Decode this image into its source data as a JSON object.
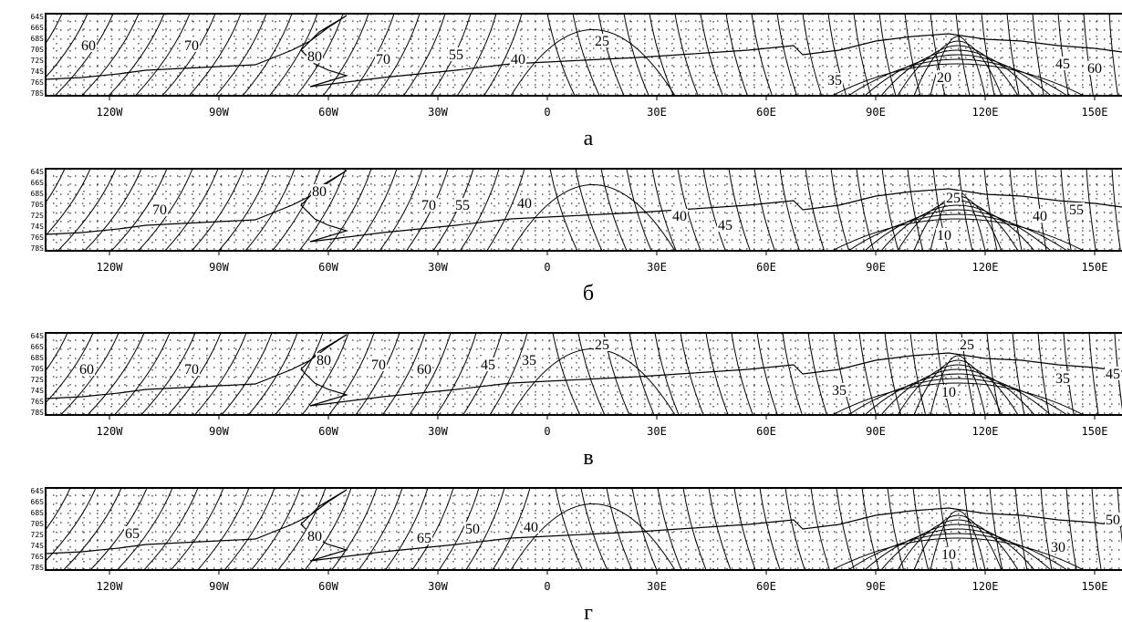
{
  "panels": [
    {
      "label": "а",
      "xticks": [
        "120W",
        "90W",
        "60W",
        "30W",
        "0",
        "30E",
        "60E",
        "90E",
        "120E",
        "150E"
      ],
      "yticks": [
        "64S",
        "66S",
        "68S",
        "70S",
        "72S",
        "74S",
        "76S",
        "78S"
      ],
      "contour_labels": [
        60,
        70,
        80,
        70,
        55,
        40,
        25,
        35,
        20,
        45,
        60
      ]
    },
    {
      "label": "б",
      "xticks": [
        "120W",
        "90W",
        "60W",
        "30W",
        "0",
        "30E",
        "60E",
        "90E",
        "120E",
        "150E"
      ],
      "yticks": [
        "64S",
        "66S",
        "68S",
        "70S",
        "72S",
        "74S",
        "76S",
        "78S"
      ],
      "contour_labels": [
        70,
        80,
        70,
        55,
        40,
        40,
        45,
        25,
        10,
        40,
        55
      ]
    },
    {
      "label": "в",
      "xticks": [
        "120W",
        "90W",
        "60W",
        "30W",
        "0",
        "30E",
        "60E",
        "90E",
        "120E",
        "150E"
      ],
      "yticks": [
        "64S",
        "66S",
        "68S",
        "70S",
        "72S",
        "74S",
        "76S",
        "78S"
      ],
      "contour_labels": [
        60,
        70,
        80,
        70,
        60,
        45,
        35,
        25,
        25,
        35,
        10,
        35,
        45
      ]
    },
    {
      "label": "г",
      "xticks": [
        "120W",
        "90W",
        "60W",
        "30W",
        "0",
        "30E",
        "60E",
        "90E",
        "120E",
        "150E"
      ],
      "yticks": [
        "64S",
        "66S",
        "68S",
        "70S",
        "72S",
        "74S",
        "76S",
        "78S"
      ],
      "contour_labels": [
        65,
        80,
        65,
        50,
        40,
        10,
        30,
        50
      ]
    }
  ]
}
